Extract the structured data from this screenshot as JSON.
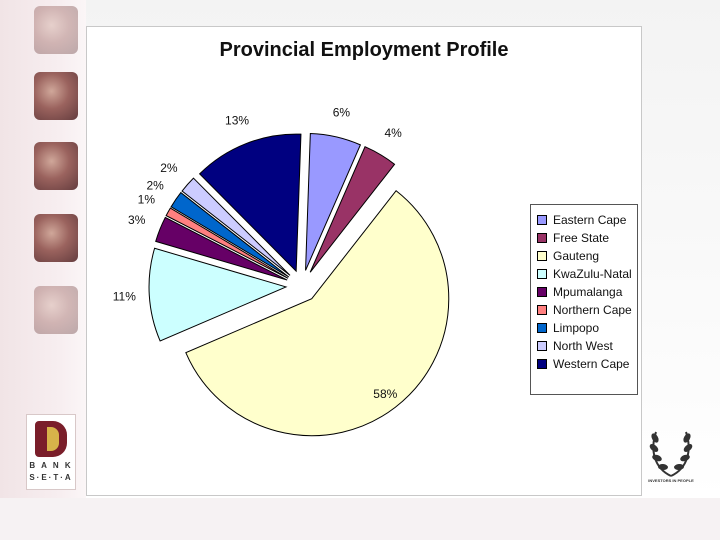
{
  "chart_data": {
    "type": "pie",
    "title": "Provincial Employment Profile",
    "legend_position": "right",
    "slices": [
      {
        "name": "Eastern Cape",
        "value": 6,
        "label": "6%",
        "color": "#9999ff"
      },
      {
        "name": "Free State",
        "value": 4,
        "label": "4%",
        "color": "#993366"
      },
      {
        "name": "Gauteng",
        "value": 58,
        "label": "58%",
        "color": "#ffffcc"
      },
      {
        "name": "KwaZulu-Natal",
        "value": 11,
        "label": "11%",
        "color": "#ccffff"
      },
      {
        "name": "Mpumalanga",
        "value": 3,
        "label": "3%",
        "color": "#660066"
      },
      {
        "name": "Northern Cape",
        "value": 1,
        "label": "1%",
        "color": "#ff8080"
      },
      {
        "name": "Limpopo",
        "value": 2,
        "label": "2%",
        "color": "#0066cc"
      },
      {
        "name": "North West",
        "value": 2,
        "label": "2%",
        "color": "#ccccff"
      },
      {
        "name": "Western Cape",
        "value": 13,
        "label": "13%",
        "color": "#000080"
      }
    ]
  },
  "branding": {
    "left_logo_text_line1": "B A N K",
    "left_logo_text_line2": "S·E·T·A",
    "right_logo_caption": "INVESTORS IN PEOPLE"
  }
}
